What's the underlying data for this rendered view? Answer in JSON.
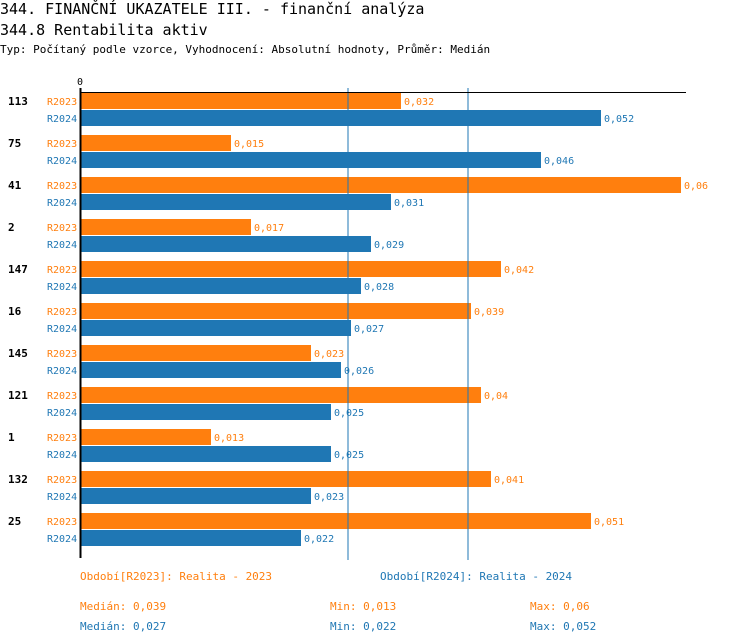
{
  "header": {
    "title": "344. FINANČNÍ UKAZATELE III. - finanční analýza",
    "subtitle": "344.8 Rentabilita aktiv",
    "description": "Typ: Počítaný podle vzorce, Vyhodnocení: Absolutní hodnoty, Průměr: Medián"
  },
  "chart_data": {
    "type": "bar",
    "orientation": "horizontal",
    "axis_zero_label": "0",
    "xlim": [
      0,
      0.0605
    ],
    "categories": [
      "113",
      "75",
      "41",
      "2",
      "147",
      "16",
      "145",
      "121",
      "1",
      "132",
      "25"
    ],
    "series": [
      {
        "name": "R2023",
        "color": "#ff7f0e",
        "values": [
          0.032,
          0.015,
          0.06,
          0.017,
          0.042,
          0.039,
          0.023,
          0.04,
          0.013,
          0.041,
          0.051
        ],
        "labels": [
          "0,032",
          "0,015",
          "0,06",
          "0,017",
          "0,042",
          "0,039",
          "0,023",
          "0,04",
          "0,013",
          "0,041",
          "0,051"
        ]
      },
      {
        "name": "R2024",
        "color": "#1f77b4",
        "values": [
          0.052,
          0.046,
          0.031,
          0.029,
          0.028,
          0.027,
          0.026,
          0.025,
          0.025,
          0.023,
          0.022
        ],
        "labels": [
          "0,052",
          "0,046",
          "0,031",
          "0,029",
          "0,028",
          "0,027",
          "0,026",
          "0,025",
          "0,025",
          "0,023",
          "0,022"
        ]
      }
    ],
    "median_lines": [
      0.039,
      0.027
    ]
  },
  "legend": {
    "r2023": {
      "title": "Období[R2023]: Realita - 2023",
      "median": "Medián: 0,039",
      "min": "Min: 0,013",
      "max": "Max: 0,06"
    },
    "r2024": {
      "title": "Období[R2024]: Realita - 2024",
      "median": "Medián: 0,027",
      "min": "Min: 0,022",
      "max": "Max: 0,052"
    }
  }
}
